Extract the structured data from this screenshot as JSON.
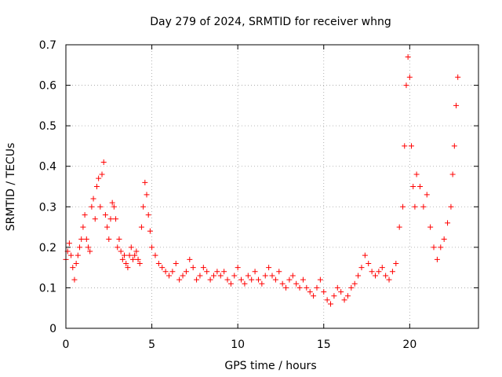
{
  "chart_data": {
    "type": "scatter",
    "title": "Day 279 of 2024, SRMTID for receiver whng",
    "xlabel": "GPS time / hours",
    "ylabel": "SRMTID / TECUs",
    "xlim": [
      0,
      24
    ],
    "ylim": [
      0,
      0.7
    ],
    "xticks": [
      0,
      5,
      10,
      15,
      20
    ],
    "yticks": [
      0,
      0.1,
      0.2,
      0.3,
      0.4,
      0.5,
      0.6,
      0.7
    ],
    "xtick_labels": [
      "0",
      "5",
      "10",
      "15",
      "20"
    ],
    "ytick_labels": [
      "0",
      "0.1",
      "0.2",
      "0.3",
      "0.4",
      "0.5",
      "0.6",
      "0.7"
    ],
    "grid": true,
    "marker": "+",
    "color": "#ff0000",
    "series": [
      {
        "name": "SRMTID",
        "x": [
          0.0,
          0.1,
          0.2,
          0.3,
          0.4,
          0.5,
          0.6,
          0.7,
          0.8,
          0.9,
          1.0,
          1.1,
          1.2,
          1.3,
          1.4,
          1.5,
          1.6,
          1.7,
          1.8,
          1.9,
          2.0,
          2.1,
          2.2,
          2.3,
          2.4,
          2.5,
          2.6,
          2.7,
          2.8,
          2.9,
          3.0,
          3.1,
          3.2,
          3.3,
          3.4,
          3.5,
          3.6,
          3.7,
          3.8,
          3.9,
          4.0,
          4.1,
          4.2,
          4.3,
          4.4,
          4.5,
          4.6,
          4.7,
          4.8,
          4.9,
          5.0,
          5.2,
          5.4,
          5.6,
          5.8,
          6.0,
          6.2,
          6.4,
          6.6,
          6.8,
          7.0,
          7.2,
          7.4,
          7.6,
          7.8,
          8.0,
          8.2,
          8.4,
          8.6,
          8.8,
          9.0,
          9.2,
          9.4,
          9.6,
          9.8,
          10.0,
          10.2,
          10.4,
          10.6,
          10.8,
          11.0,
          11.2,
          11.4,
          11.6,
          11.8,
          12.0,
          12.2,
          12.4,
          12.6,
          12.8,
          13.0,
          13.2,
          13.4,
          13.6,
          13.8,
          14.0,
          14.2,
          14.4,
          14.6,
          14.8,
          15.0,
          15.2,
          15.4,
          15.6,
          15.8,
          16.0,
          16.2,
          16.4,
          16.6,
          16.8,
          17.0,
          17.2,
          17.4,
          17.6,
          17.8,
          18.0,
          18.2,
          18.4,
          18.6,
          18.8,
          19.0,
          19.2,
          19.4,
          19.6,
          19.7,
          19.8,
          19.9,
          20.0,
          20.1,
          20.2,
          20.3,
          20.4,
          20.6,
          20.8,
          21.0,
          21.2,
          21.4,
          21.6,
          21.8,
          22.0,
          22.2,
          22.4,
          22.5,
          22.6,
          22.7,
          22.8
        ],
        "y": [
          0.17,
          0.19,
          0.21,
          0.18,
          0.15,
          0.12,
          0.16,
          0.18,
          0.2,
          0.22,
          0.25,
          0.28,
          0.22,
          0.2,
          0.19,
          0.3,
          0.32,
          0.27,
          0.35,
          0.37,
          0.3,
          0.38,
          0.41,
          0.28,
          0.25,
          0.22,
          0.27,
          0.31,
          0.3,
          0.27,
          0.2,
          0.22,
          0.19,
          0.17,
          0.18,
          0.16,
          0.15,
          0.18,
          0.2,
          0.17,
          0.18,
          0.19,
          0.17,
          0.16,
          0.25,
          0.3,
          0.36,
          0.33,
          0.28,
          0.24,
          0.2,
          0.18,
          0.16,
          0.15,
          0.14,
          0.13,
          0.14,
          0.16,
          0.12,
          0.13,
          0.14,
          0.17,
          0.15,
          0.12,
          0.13,
          0.15,
          0.14,
          0.12,
          0.13,
          0.14,
          0.13,
          0.14,
          0.12,
          0.11,
          0.13,
          0.15,
          0.12,
          0.11,
          0.13,
          0.12,
          0.14,
          0.12,
          0.11,
          0.13,
          0.15,
          0.13,
          0.12,
          0.14,
          0.11,
          0.1,
          0.12,
          0.13,
          0.11,
          0.1,
          0.12,
          0.1,
          0.09,
          0.08,
          0.1,
          0.12,
          0.09,
          0.07,
          0.06,
          0.08,
          0.1,
          0.09,
          0.07,
          0.08,
          0.1,
          0.11,
          0.13,
          0.15,
          0.18,
          0.16,
          0.14,
          0.13,
          0.14,
          0.15,
          0.13,
          0.12,
          0.14,
          0.16,
          0.25,
          0.3,
          0.45,
          0.6,
          0.67,
          0.62,
          0.45,
          0.35,
          0.3,
          0.38,
          0.35,
          0.3,
          0.33,
          0.25,
          0.2,
          0.17,
          0.2,
          0.22,
          0.26,
          0.3,
          0.38,
          0.45,
          0.55,
          0.62
        ]
      }
    ]
  }
}
